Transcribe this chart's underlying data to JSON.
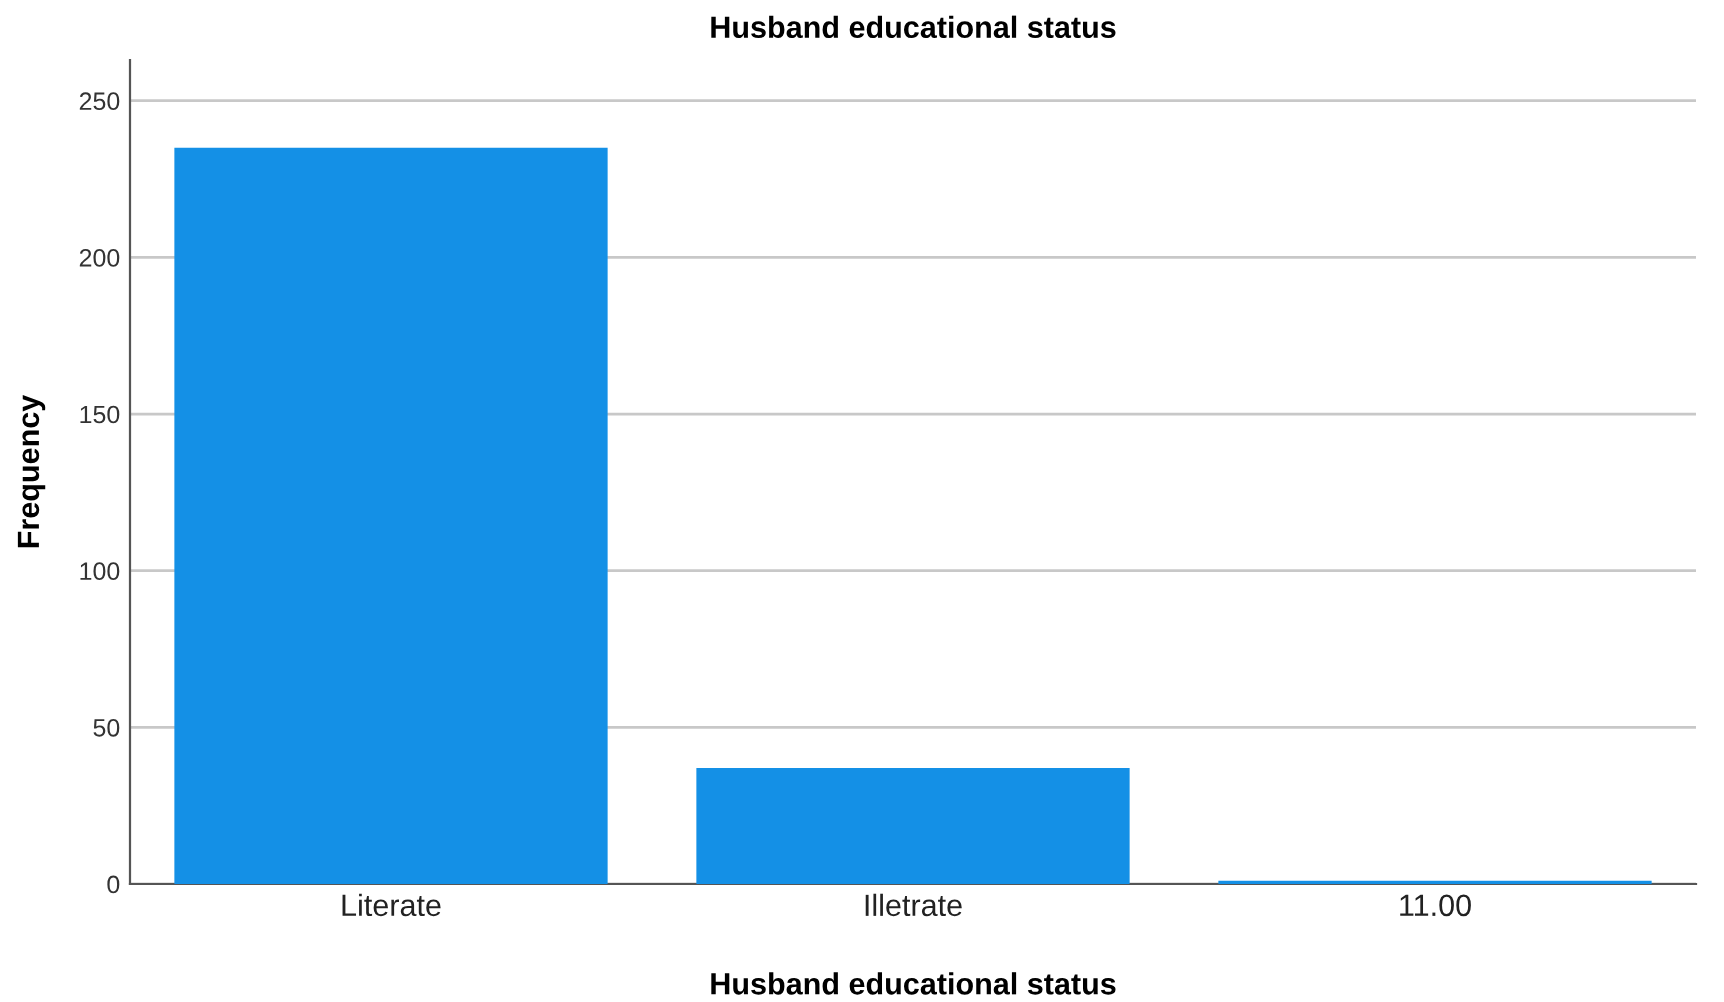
{
  "chart_data": {
    "type": "bar",
    "title": "Husband educational status",
    "xlabel": "Husband educational status",
    "ylabel": "Frequency",
    "categories": [
      "Literate",
      "Illetrate",
      "11.00"
    ],
    "values": [
      235,
      37,
      1
    ],
    "color": "#1490e6",
    "ylim": [
      0,
      263
    ],
    "yticks": [
      0,
      50,
      100,
      150,
      200,
      250
    ],
    "grid": "y"
  }
}
